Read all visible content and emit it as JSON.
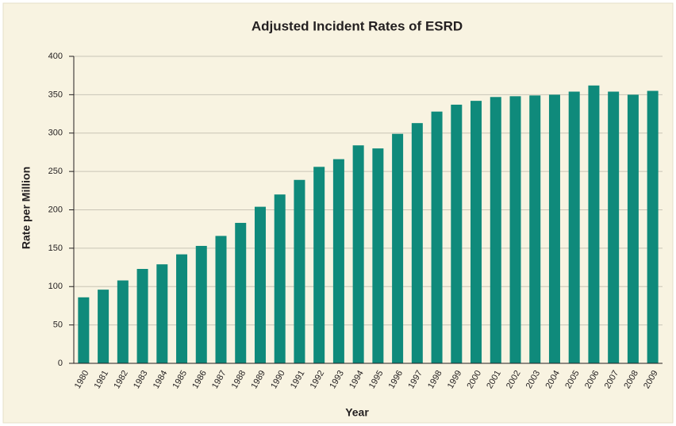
{
  "chart_data": {
    "type": "bar",
    "title": "Adjusted Incident Rates of ESRD",
    "x_label": "Year",
    "y_label": "Rate per Million",
    "categories": [
      "1980",
      "1981",
      "1982",
      "1983",
      "1984",
      "1985",
      "1986",
      "1987",
      "1988",
      "1989",
      "1990",
      "1991",
      "1992",
      "1993",
      "1994",
      "1995",
      "1996",
      "1997",
      "1998",
      "1999",
      "2000",
      "2001",
      "2002",
      "2003",
      "2004",
      "2005",
      "2006",
      "2007",
      "2008",
      "2009"
    ],
    "values": [
      86,
      96,
      108,
      123,
      129,
      142,
      153,
      166,
      183,
      204,
      220,
      239,
      256,
      266,
      284,
      280,
      299,
      313,
      328,
      337,
      342,
      347,
      348,
      349,
      350,
      354,
      362,
      354,
      350,
      355
    ],
    "color": "#0f8a7b",
    "ylim": [
      0,
      400
    ],
    "yticks": [
      0,
      50,
      100,
      150,
      200,
      250,
      300,
      350,
      400
    ],
    "grid": true
  }
}
